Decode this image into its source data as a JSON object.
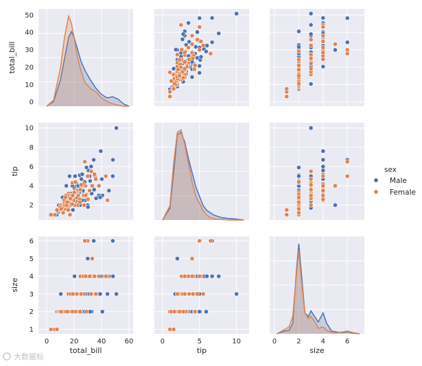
{
  "chart_data": {
    "type": "pairplot",
    "variables": [
      "total_bill",
      "tip",
      "size"
    ],
    "hue": "sex",
    "legend": {
      "title": "sex",
      "placement": "right",
      "entries": [
        {
          "label": "Male",
          "color": "#4c72b0"
        },
        {
          "label": "Female",
          "color": "#dd8452"
        }
      ]
    },
    "axes": {
      "total_bill": {
        "label": "total_bill",
        "ticks": [
          0,
          20,
          40,
          60
        ],
        "range": [
          -6,
          63
        ],
        "label_ticks": [
          0,
          10,
          20,
          30,
          40,
          50
        ],
        "label_range": [
          -2.5,
          53.5
        ]
      },
      "tip": {
        "label": "tip",
        "ticks": [
          0,
          5,
          10
        ],
        "range": [
          -1.1,
          11.7
        ],
        "label_ticks": [
          2,
          4,
          6,
          8,
          10
        ],
        "label_range": [
          0.45,
          10.55
        ]
      },
      "size": {
        "label": "size",
        "ticks": [
          0,
          2,
          4,
          6
        ],
        "range": [
          -0.4,
          7.4
        ],
        "label_ticks": [
          1,
          2,
          3,
          4,
          5,
          6
        ],
        "label_range": [
          0.75,
          6.25
        ]
      }
    },
    "kde": {
      "total_bill": {
        "x": [
          0,
          5,
          10,
          13,
          16,
          18,
          20,
          22,
          25,
          28,
          32,
          36,
          40,
          44,
          48,
          52,
          56,
          60
        ],
        "Male": [
          0,
          0.004,
          0.022,
          0.04,
          0.058,
          0.063,
          0.058,
          0.05,
          0.038,
          0.03,
          0.022,
          0.015,
          0.01,
          0.007,
          0.008,
          0.006,
          0.002,
          0
        ],
        "Female": [
          0,
          0.005,
          0.032,
          0.058,
          0.076,
          0.07,
          0.058,
          0.044,
          0.03,
          0.02,
          0.015,
          0.012,
          0.007,
          0.004,
          0.002,
          0.001,
          0,
          0
        ]
      },
      "tip": {
        "x": [
          0,
          1,
          1.5,
          2,
          2.5,
          3,
          3.5,
          4,
          4.5,
          5,
          5.5,
          6,
          6.5,
          7,
          8,
          9,
          10,
          11
        ],
        "Male": [
          0,
          0.05,
          0.2,
          0.36,
          0.37,
          0.33,
          0.26,
          0.2,
          0.14,
          0.1,
          0.06,
          0.04,
          0.03,
          0.02,
          0.01,
          0.006,
          0.004,
          0
        ],
        "Female": [
          0,
          0.06,
          0.24,
          0.37,
          0.38,
          0.32,
          0.24,
          0.16,
          0.1,
          0.07,
          0.04,
          0.02,
          0.01,
          0.005,
          0.002,
          0,
          0,
          0
        ]
      },
      "size": {
        "x": [
          0.2,
          0.8,
          1.2,
          1.5,
          1.8,
          2,
          2.2,
          2.5,
          2.8,
          3,
          3.3,
          3.6,
          4,
          4.3,
          4.7,
          5,
          5.3,
          5.7,
          6,
          6.4,
          7
        ],
        "Male": [
          0,
          0.04,
          0.05,
          0.15,
          0.9,
          1.3,
          0.9,
          0.3,
          0.25,
          0.33,
          0.25,
          0.17,
          0.3,
          0.15,
          0.04,
          0.03,
          0.02,
          0.02,
          0.03,
          0.01,
          0
        ],
        "Female": [
          0,
          0.06,
          0.1,
          0.25,
          0.85,
          1.2,
          0.8,
          0.3,
          0.22,
          0.25,
          0.18,
          0.08,
          0.1,
          0.05,
          0.02,
          0.01,
          0.02,
          0.03,
          0.04,
          0.02,
          0
        ]
      }
    },
    "points": {
      "Male": [
        [
          10.3,
          1.7,
          3
        ],
        [
          21.0,
          3.5,
          3
        ],
        [
          23.7,
          3.3,
          2
        ],
        [
          25.3,
          4.7,
          4
        ],
        [
          8.8,
          2.0,
          2
        ],
        [
          26.9,
          3.1,
          4
        ],
        [
          15.0,
          2.0,
          2
        ],
        [
          15.8,
          3.1,
          2
        ],
        [
          35.3,
          5.0,
          4
        ],
        [
          21.6,
          3.9,
          2
        ],
        [
          20.3,
          2.8,
          2
        ],
        [
          30.4,
          5.6,
          4
        ],
        [
          24.6,
          3.6,
          2
        ],
        [
          25.6,
          4.1,
          3
        ],
        [
          19.4,
          3.0,
          2
        ],
        [
          22.2,
          2.8,
          2
        ],
        [
          48.3,
          6.7,
          4
        ],
        [
          28.6,
          4.0,
          3
        ],
        [
          20.7,
          5.0,
          3
        ],
        [
          34.8,
          5.0,
          4
        ],
        [
          32.4,
          6.0,
          4
        ],
        [
          50.8,
          10.0,
          3
        ],
        [
          40.2,
          4.7,
          4
        ],
        [
          39.4,
          7.6,
          4
        ],
        [
          48.2,
          5.0,
          6
        ],
        [
          44.3,
          2.5,
          3
        ],
        [
          7.3,
          1.0,
          2
        ],
        [
          29.9,
          2.0,
          5
        ],
        [
          18.2,
          2.0,
          2
        ],
        [
          13.0,
          2.0,
          2
        ],
        [
          16.3,
          2.2,
          2
        ],
        [
          17.5,
          3.2,
          2
        ],
        [
          34.6,
          3.6,
          4
        ],
        [
          45.4,
          3.5,
          4
        ],
        [
          38.0,
          4.0,
          3
        ],
        [
          12.9,
          2.1,
          2
        ],
        [
          23.3,
          3.5,
          3
        ],
        [
          27.2,
          4.0,
          3
        ],
        [
          31.3,
          5.0,
          3
        ],
        [
          26.4,
          3.5,
          4
        ],
        [
          17.8,
          3.0,
          2
        ],
        [
          20.1,
          2.5,
          2
        ],
        [
          22.8,
          2.2,
          2
        ],
        [
          11.2,
          1.8,
          2
        ],
        [
          14.5,
          2.0,
          2
        ],
        [
          24.3,
          2.0,
          2
        ],
        [
          28.2,
          2.5,
          2
        ],
        [
          32.8,
          3.2,
          2
        ],
        [
          20.3,
          3.7,
          4
        ],
        [
          13.8,
          2.6,
          2
        ],
        [
          40.6,
          3.0,
          2
        ],
        [
          16.0,
          2.6,
          2
        ],
        [
          19.8,
          2.6,
          2
        ],
        [
          24.1,
          5.1,
          2
        ],
        [
          30.1,
          1.8,
          2
        ],
        [
          18.8,
          4.0,
          3
        ],
        [
          15.4,
          3.0,
          2
        ],
        [
          22.5,
          3.1,
          2
        ],
        [
          9.6,
          1.6,
          2
        ],
        [
          10.6,
          1.6,
          2
        ],
        [
          17.3,
          2.0,
          2
        ],
        [
          29.0,
          5.9,
          2
        ],
        [
          26.0,
          2.5,
          2
        ],
        [
          38.1,
          3.0,
          3
        ],
        [
          43.1,
          5.0,
          4
        ],
        [
          25.9,
          5.2,
          4
        ],
        [
          12.5,
          1.5,
          2
        ],
        [
          14.3,
          4.0,
          2
        ],
        [
          21.7,
          4.3,
          2
        ],
        [
          31.7,
          4.5,
          2
        ],
        [
          19.1,
          1.5,
          2
        ],
        [
          36.0,
          2.7,
          4
        ],
        [
          16.7,
          5.0,
          2
        ],
        [
          23.1,
          4.0,
          3
        ],
        [
          8.6,
          1.3,
          2
        ],
        [
          27.6,
          3.0,
          2
        ],
        [
          7.8,
          1.4,
          2
        ],
        [
          39.0,
          2.8,
          3
        ],
        [
          22.9,
          2.4,
          3
        ],
        [
          27.7,
          4.4,
          2
        ],
        [
          34.3,
          6.7,
          6
        ],
        [
          11.6,
          2.8,
          2
        ],
        [
          20.9,
          3.5,
          2
        ]
      ],
      "Female": [
        [
          17.0,
          1.0,
          2
        ],
        [
          24.6,
          3.6,
          4
        ],
        [
          35.3,
          5.0,
          4
        ],
        [
          14.8,
          3.0,
          2
        ],
        [
          10.3,
          1.7,
          2
        ],
        [
          22.0,
          3.5,
          3
        ],
        [
          19.7,
          3.0,
          2
        ],
        [
          14.2,
          2.5,
          2
        ],
        [
          5.8,
          1.0,
          1
        ],
        [
          16.3,
          2.6,
          3
        ],
        [
          16.9,
          1.9,
          2
        ],
        [
          18.4,
          3.0,
          2
        ],
        [
          12.5,
          2.2,
          2
        ],
        [
          29.9,
          5.0,
          6
        ],
        [
          13.4,
          1.6,
          2
        ],
        [
          15.8,
          3.2,
          3
        ],
        [
          19.4,
          3.0,
          2
        ],
        [
          22.1,
          3.5,
          3
        ],
        [
          44.3,
          2.5,
          4
        ],
        [
          26.9,
          3.0,
          4
        ],
        [
          27.8,
          6.5,
          6
        ],
        [
          11.0,
          1.7,
          2
        ],
        [
          22.4,
          2.0,
          2
        ],
        [
          28.2,
          4.0,
          4
        ],
        [
          13.0,
          2.0,
          2
        ],
        [
          18.3,
          3.0,
          3
        ],
        [
          10.1,
          2.0,
          2
        ],
        [
          8.5,
          1.5,
          2
        ],
        [
          20.3,
          2.0,
          2
        ],
        [
          34.8,
          5.2,
          4
        ],
        [
          16.4,
          2.5,
          2
        ],
        [
          3.1,
          1.0,
          1
        ],
        [
          15.7,
          1.5,
          2
        ],
        [
          25.7,
          4.0,
          3
        ],
        [
          17.5,
          2.0,
          2
        ],
        [
          12.7,
          2.5,
          2
        ],
        [
          24.1,
          2.6,
          2
        ],
        [
          9.0,
          1.5,
          2
        ],
        [
          15.4,
          3.0,
          2
        ],
        [
          18.8,
          4.3,
          3
        ],
        [
          14.0,
          3.0,
          2
        ],
        [
          30.1,
          2.6,
          4
        ],
        [
          20.9,
          3.3,
          2
        ],
        [
          21.5,
          2.4,
          2
        ],
        [
          33.2,
          4.0,
          5
        ],
        [
          31.3,
          3.5,
          4
        ],
        [
          11.7,
          1.8,
          2
        ],
        [
          43.1,
          5.0,
          4
        ],
        [
          35.8,
          4.7,
          3
        ],
        [
          12.9,
          2.2,
          2
        ],
        [
          24.5,
          3.6,
          3
        ],
        [
          19.8,
          2.5,
          2
        ],
        [
          15.0,
          1.9,
          2
        ],
        [
          7.5,
          1.5,
          1
        ],
        [
          23.0,
          3.0,
          2
        ],
        [
          13.3,
          2.0,
          2
        ],
        [
          26.6,
          4.2,
          4
        ],
        [
          27.2,
          2.0,
          3
        ],
        [
          17.8,
          2.6,
          2
        ],
        [
          20.1,
          3.3,
          2
        ],
        [
          32.5,
          5.5,
          3
        ],
        [
          14.5,
          2.0,
          2
        ],
        [
          21.0,
          4.4,
          2
        ],
        [
          9.8,
          1.8,
          2
        ],
        [
          18.6,
          2.1,
          2
        ],
        [
          29.0,
          3.1,
          2
        ],
        [
          25.1,
          4.1,
          3
        ],
        [
          12.0,
          1.2,
          2
        ],
        [
          17.3,
          2.7,
          3
        ],
        [
          38.1,
          4.0,
          4
        ],
        [
          16.0,
          2.3,
          2
        ],
        [
          10.6,
          1.6,
          2
        ],
        [
          24.3,
          2.3,
          2
        ],
        [
          28.4,
          3.0,
          4
        ],
        [
          13.8,
          2.8,
          2
        ],
        [
          15.0,
          2.3,
          2
        ],
        [
          19.0,
          3.0,
          3
        ]
      ]
    }
  },
  "watermark": "大数据标"
}
